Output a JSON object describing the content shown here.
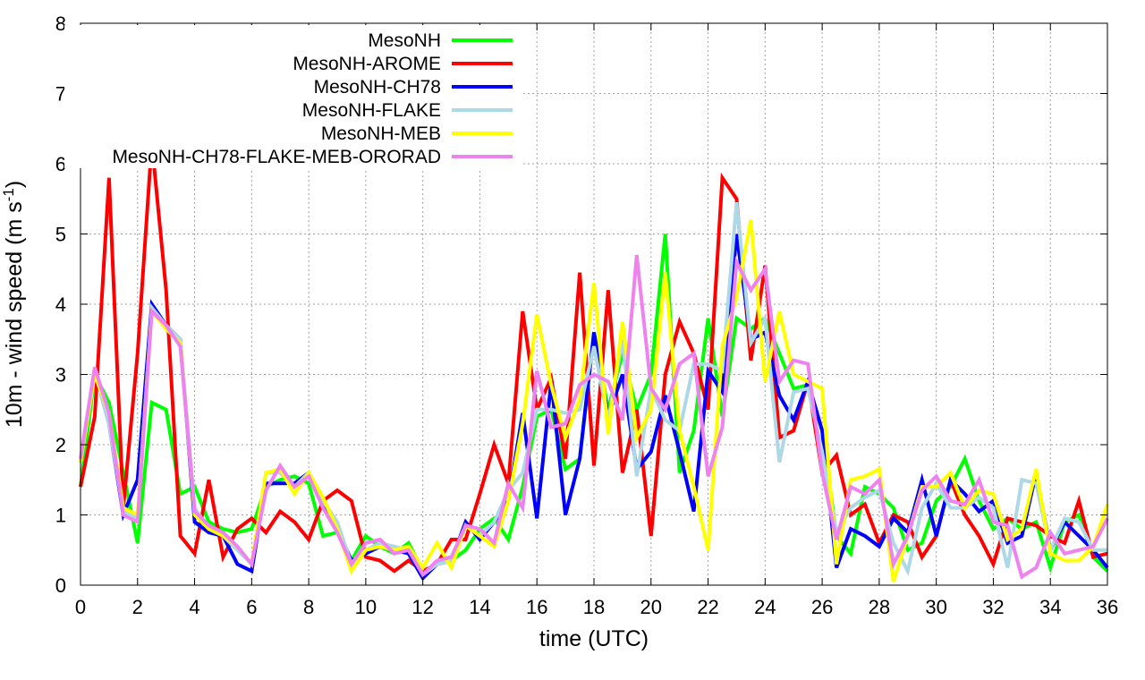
{
  "chart_data": {
    "type": "line",
    "title": "",
    "xlabel": "time (UTC)",
    "ylabel": "10m - wind speed  (m s",
    "ylabel_sup": "-1",
    "ylabel_end": ")",
    "xlim": [
      0,
      36
    ],
    "ylim": [
      0,
      8
    ],
    "xticks": [
      "0",
      "2",
      "4",
      "6",
      "8",
      "10",
      "12",
      "14",
      "16",
      "18",
      "20",
      "22",
      "24",
      "26",
      "28",
      "30",
      "32",
      "34",
      "36"
    ],
    "yticks": [
      "0",
      "1",
      "2",
      "3",
      "4",
      "5",
      "6",
      "7",
      "8"
    ],
    "grid": true,
    "legend_position": "top-left",
    "x": [
      0,
      0.5,
      1,
      1.5,
      2,
      2.5,
      3,
      3.5,
      4,
      4.5,
      5,
      5.5,
      6,
      6.5,
      7,
      7.5,
      8,
      8.5,
      9,
      9.5,
      10,
      10.5,
      11,
      11.5,
      12,
      12.5,
      13,
      13.5,
      14,
      14.5,
      15,
      15.5,
      16,
      16.5,
      17,
      17.5,
      18,
      18.5,
      19,
      19.5,
      20,
      20.5,
      21,
      21.5,
      22,
      22.5,
      23,
      23.5,
      24,
      24.5,
      25,
      25.5,
      26,
      26.5,
      27,
      27.5,
      28,
      28.5,
      29,
      29.5,
      30,
      30.5,
      31,
      31.5,
      32,
      32.5,
      33,
      33.5,
      34,
      34.5,
      35,
      35.5,
      36
    ],
    "series": [
      {
        "name": "MesoNH",
        "color": "#00ff00",
        "values": [
          1.4,
          3.0,
          2.6,
          1.6,
          0.6,
          2.6,
          2.5,
          1.3,
          1.4,
          0.9,
          0.8,
          0.75,
          0.8,
          1.4,
          1.5,
          1.55,
          1.45,
          0.7,
          0.75,
          0.35,
          0.7,
          0.55,
          0.45,
          0.6,
          0.2,
          0.3,
          0.35,
          0.5,
          0.8,
          0.95,
          0.65,
          1.4,
          2.4,
          2.5,
          1.65,
          1.8,
          3.6,
          2.5,
          3.3,
          2.5,
          3.0,
          5.0,
          1.6,
          2.2,
          3.8,
          2.4,
          3.8,
          3.65,
          3.8,
          3.3,
          2.8,
          2.85,
          2.2,
          0.7,
          0.45,
          1.4,
          1.3,
          1.1,
          0.5,
          0.6,
          1.2,
          1.4,
          1.8,
          1.2,
          0.8,
          0.95,
          0.8,
          0.9,
          0.25,
          0.9,
          1.0,
          0.4,
          0.2
        ]
      },
      {
        "name": "MesoNH-AROME",
        "color": "#ff0000",
        "values": [
          1.4,
          2.4,
          5.8,
          1.1,
          3.3,
          6.3,
          4.2,
          0.7,
          0.45,
          1.5,
          0.4,
          0.8,
          0.95,
          0.75,
          1.05,
          0.9,
          0.65,
          1.2,
          1.35,
          1.2,
          0.4,
          0.35,
          0.2,
          0.35,
          0.2,
          0.3,
          0.65,
          0.65,
          1.3,
          2.0,
          1.45,
          3.9,
          2.5,
          2.95,
          1.8,
          4.45,
          1.7,
          4.2,
          1.6,
          2.5,
          0.7,
          3.0,
          3.75,
          3.3,
          2.5,
          5.8,
          5.5,
          3.2,
          4.55,
          2.1,
          2.2,
          2.9,
          1.6,
          1.85,
          1.0,
          1.15,
          0.6,
          1.0,
          0.9,
          0.4,
          0.7,
          1.5,
          1.0,
          0.7,
          0.3,
          0.95,
          0.9,
          0.85,
          0.7,
          0.6,
          1.2,
          0.4,
          0.45
        ]
      },
      {
        "name": "MesoNH-CH78",
        "color": "#0000ff",
        "values": [
          1.75,
          3.05,
          2.3,
          1.0,
          1.5,
          4.0,
          3.7,
          3.5,
          0.9,
          0.75,
          0.7,
          0.3,
          0.2,
          1.45,
          1.45,
          1.45,
          1.6,
          1.2,
          0.8,
          0.35,
          0.45,
          0.55,
          0.5,
          0.45,
          0.1,
          0.3,
          0.35,
          0.9,
          0.65,
          0.9,
          1.2,
          2.45,
          0.95,
          2.9,
          1.0,
          1.8,
          3.6,
          2.4,
          3.0,
          1.65,
          1.9,
          2.7,
          1.9,
          1.05,
          3.05,
          2.75,
          5.0,
          3.5,
          3.6,
          2.7,
          2.35,
          2.9,
          2.2,
          0.25,
          0.8,
          0.7,
          0.55,
          0.95,
          0.75,
          1.5,
          0.7,
          1.5,
          1.3,
          1.05,
          1.2,
          0.6,
          0.7,
          1.6,
          0.5,
          0.9,
          0.7,
          0.5,
          0.25
        ]
      },
      {
        "name": "MesoNH-FLAKE",
        "color": "#add8e6",
        "values": [
          1.75,
          3.05,
          2.3,
          1.05,
          0.95,
          3.95,
          3.7,
          3.5,
          1.1,
          0.8,
          0.7,
          0.5,
          0.3,
          1.6,
          1.6,
          1.4,
          1.6,
          1.2,
          0.9,
          0.3,
          0.5,
          0.6,
          0.55,
          0.5,
          0.15,
          0.3,
          0.35,
          0.85,
          0.7,
          0.9,
          1.35,
          1.6,
          2.5,
          2.5,
          2.45,
          2.5,
          3.4,
          2.35,
          3.5,
          1.55,
          2.8,
          2.35,
          2.2,
          3.15,
          3.15,
          3.05,
          5.45,
          3.45,
          3.8,
          1.75,
          2.75,
          2.8,
          1.9,
          0.75,
          1.1,
          1.25,
          1.35,
          0.6,
          0.2,
          1.1,
          1.45,
          1.1,
          1.1,
          1.25,
          1.1,
          0.25,
          1.5,
          1.45,
          0.5,
          0.95,
          0.9,
          0.5,
          0.5
        ]
      },
      {
        "name": "MesoNH-MEB",
        "color": "#ffff00",
        "values": [
          1.75,
          3.0,
          2.45,
          1.1,
          1.0,
          3.9,
          3.65,
          3.45,
          1.0,
          0.8,
          0.7,
          0.55,
          0.3,
          1.6,
          1.65,
          1.3,
          1.6,
          1.25,
          0.8,
          0.2,
          0.5,
          0.55,
          0.5,
          0.55,
          0.25,
          0.6,
          0.25,
          0.85,
          0.7,
          0.55,
          1.2,
          2.3,
          3.85,
          2.85,
          2.1,
          2.65,
          4.3,
          2.15,
          3.75,
          2.1,
          2.5,
          4.45,
          2.2,
          1.4,
          0.5,
          3.4,
          4.1,
          5.2,
          2.9,
          3.9,
          3.0,
          2.9,
          2.8,
          0.3,
          1.5,
          1.55,
          1.65,
          0.05,
          0.7,
          1.4,
          1.4,
          1.6,
          1.1,
          1.35,
          1.3,
          0.65,
          0.8,
          1.65,
          0.45,
          0.35,
          0.35,
          0.55,
          1.15
        ]
      },
      {
        "name": "MesoNH-CH78-FLAKE-MEB-ORORAD",
        "color": "#ee82ee",
        "values": [
          1.8,
          3.1,
          2.45,
          1.0,
          0.9,
          3.9,
          3.7,
          3.4,
          1.05,
          0.85,
          0.75,
          0.55,
          0.3,
          1.35,
          1.7,
          1.4,
          1.55,
          1.1,
          0.75,
          0.3,
          0.6,
          0.65,
          0.45,
          0.5,
          0.15,
          0.35,
          0.4,
          0.85,
          0.8,
          0.6,
          1.45,
          1.1,
          3.05,
          2.25,
          2.3,
          2.85,
          3.0,
          2.9,
          2.35,
          4.7,
          2.8,
          2.5,
          3.15,
          3.3,
          1.55,
          2.25,
          4.6,
          4.2,
          4.5,
          2.9,
          3.2,
          3.15,
          1.6,
          0.65,
          1.4,
          1.3,
          1.5,
          0.3,
          0.7,
          1.35,
          1.55,
          1.2,
          1.15,
          1.5,
          0.9,
          0.85,
          0.12,
          0.25,
          0.75,
          0.45,
          0.5,
          0.55,
          0.95
        ]
      }
    ]
  }
}
